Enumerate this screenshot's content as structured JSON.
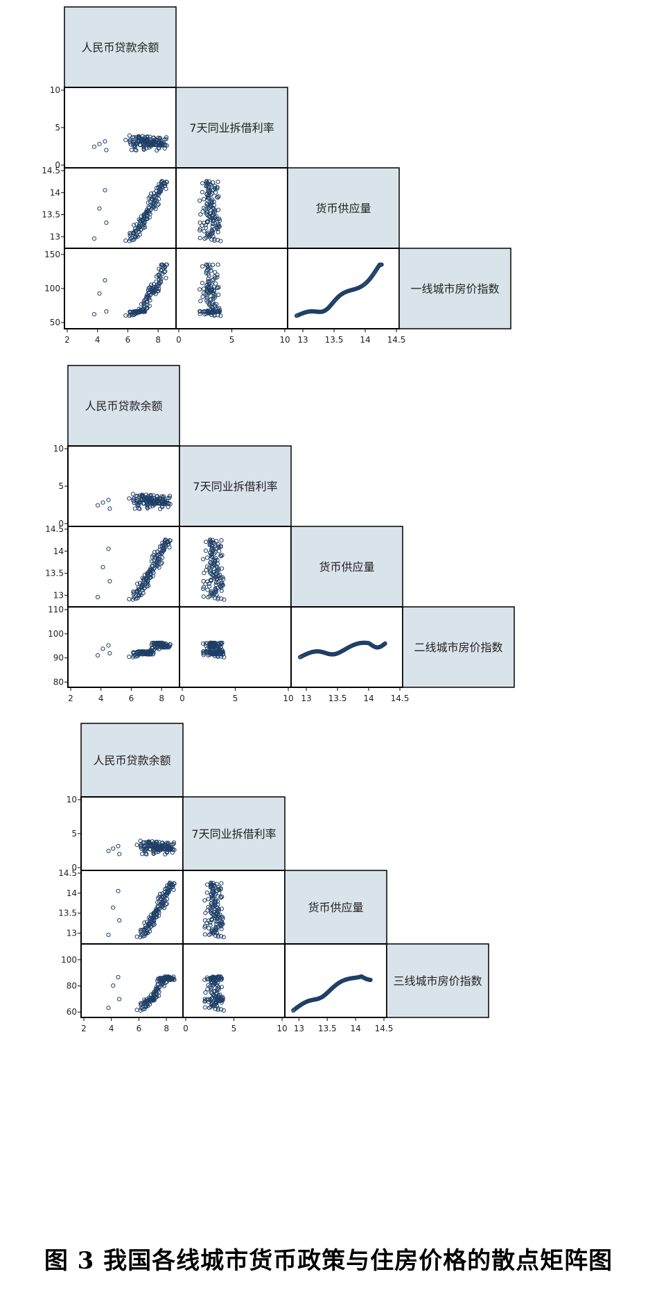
{
  "caption": "图 3  我国各线城市货币政策与住房价格的散点矩阵图",
  "colors": {
    "panel_fill": "#d9e3ea",
    "marker": "#1f3f66",
    "frame": "#000000",
    "axis_text": "#222222"
  },
  "variables": {
    "loans": "人民币贷款余额",
    "shibor": "7天同业拆借利率",
    "m2": "货币供应量",
    "price_tier1": "一线城市房价指数",
    "price_tier2": "二线城市房价指数",
    "price_tier3": "三线城市房价指数"
  },
  "axes": {
    "loans": {
      "range": [
        2,
        9
      ],
      "ticks": [
        "2",
        "4",
        "6",
        "8"
      ]
    },
    "shibor": {
      "range": [
        0,
        10
      ],
      "ticks": [
        "0",
        "5",
        "10"
      ]
    },
    "m2": {
      "range": [
        12.8,
        14.5
      ],
      "ticks": [
        "13",
        "13.5",
        "14",
        "14.5"
      ]
    }
  },
  "chart_data": [
    {
      "type": "scatter",
      "kind": "scatter-matrix",
      "variables": [
        "人民币贷款余额",
        "7天同业拆借利率",
        "货币供应量",
        "一线城市房价指数"
      ],
      "row_ticks": {
        "7天同业拆借利率": [
          "10",
          "5",
          "0"
        ],
        "货币供应量": [
          "14.5",
          "14",
          "13.5",
          "13"
        ],
        "一线城市房价指数": [
          "150",
          "100",
          "50"
        ]
      },
      "row_ranges": {
        "7天同业拆借利率": [
          0,
          10
        ],
        "货币供应量": [
          12.8,
          14.5
        ],
        "一线城市房价指数": [
          45,
          155
        ]
      },
      "price_range": [
        60,
        135
      ]
    },
    {
      "type": "scatter",
      "kind": "scatter-matrix",
      "variables": [
        "人民币贷款余额",
        "7天同业拆借利率",
        "货币供应量",
        "二线城市房价指数"
      ],
      "row_ticks": {
        "7天同业拆借利率": [
          "10",
          "5",
          "0"
        ],
        "货币供应量": [
          "14.5",
          "14",
          "13.5",
          "13"
        ],
        "二线城市房价指数": [
          "110",
          "100",
          "90",
          "80"
        ]
      },
      "row_ranges": {
        "7天同业拆借利率": [
          0,
          10
        ],
        "货币供应量": [
          12.8,
          14.5
        ],
        "二线城市房价指数": [
          79,
          110
        ]
      },
      "price_range": [
        82,
        108
      ]
    },
    {
      "type": "scatter",
      "kind": "scatter-matrix",
      "variables": [
        "人民币贷款余额",
        "7天同业拆借利率",
        "货币供应量",
        "三线城市房价指数"
      ],
      "row_ticks": {
        "7天同业拆借利率": [
          "10",
          "5",
          "0"
        ],
        "货币供应量": [
          "14.5",
          "14",
          "13.5",
          "13"
        ],
        "三线城市房价指数": [
          "100",
          "80",
          "60"
        ]
      },
      "row_ranges": {
        "7天同业拆借利率": [
          0,
          10
        ],
        "货币供应量": [
          12.8,
          14.5
        ],
        "三线城市房价指数": [
          58,
          110
        ]
      },
      "price_range": [
        60,
        107
      ]
    }
  ]
}
